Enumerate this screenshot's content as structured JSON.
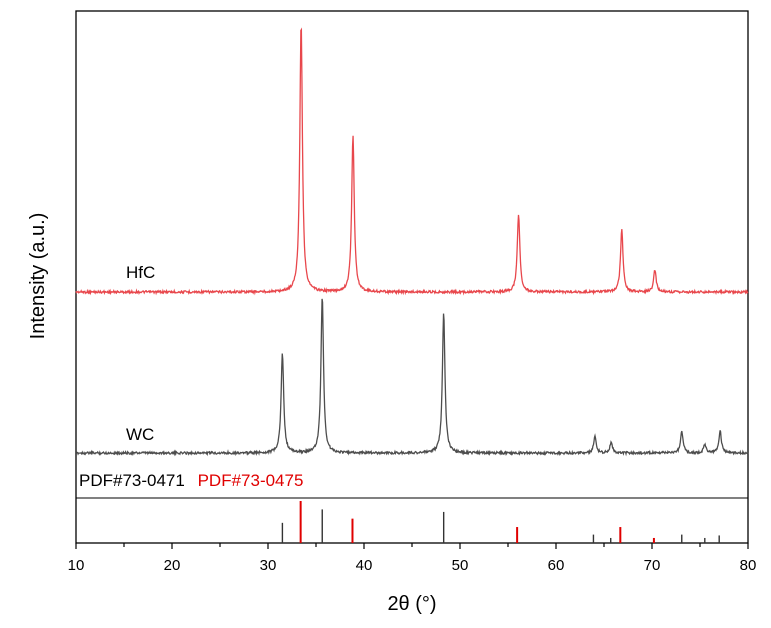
{
  "chart_data": {
    "type": "line",
    "xlabel": "2θ (°)",
    "ylabel": "Intensity (a.u.)",
    "xlim": [
      10,
      80
    ],
    "xticks": [
      "10",
      "20",
      "30",
      "40",
      "50",
      "60",
      "70",
      "80"
    ],
    "y_scale": "arbitrary units, stacked offset",
    "grid": false,
    "series": [
      {
        "name": "HfC",
        "color": "#e8474c",
        "baseline": 1.0,
        "peaks": [
          {
            "x": 33.45,
            "height": 1.0
          },
          {
            "x": 38.85,
            "height": 0.58
          },
          {
            "x": 56.1,
            "height": 0.29
          },
          {
            "x": 66.85,
            "height": 0.23
          },
          {
            "x": 70.3,
            "height": 0.08
          }
        ]
      },
      {
        "name": "WC",
        "color": "#4d4d4d",
        "baseline": 0.0,
        "peaks": [
          {
            "x": 31.5,
            "height": 0.37
          },
          {
            "x": 35.65,
            "height": 0.58
          },
          {
            "x": 48.3,
            "height": 0.52
          },
          {
            "x": 64.05,
            "height": 0.06
          },
          {
            "x": 65.75,
            "height": 0.04
          },
          {
            "x": 73.1,
            "height": 0.08
          },
          {
            "x": 75.5,
            "height": 0.03
          },
          {
            "x": 77.1,
            "height": 0.08
          }
        ]
      }
    ],
    "reference_patterns": [
      {
        "label": "PDF#73-0471",
        "color": "#333333",
        "lines": [
          {
            "x": 31.5,
            "intensity": 0.48
          },
          {
            "x": 35.65,
            "intensity": 0.8
          },
          {
            "x": 48.3,
            "intensity": 0.74
          },
          {
            "x": 63.9,
            "intensity": 0.2
          },
          {
            "x": 65.7,
            "intensity": 0.12
          },
          {
            "x": 73.1,
            "intensity": 0.2
          },
          {
            "x": 75.5,
            "intensity": 0.12
          },
          {
            "x": 77.0,
            "intensity": 0.18
          }
        ]
      },
      {
        "label": "PDF#73-0475",
        "color": "#e00000",
        "lines": [
          {
            "x": 33.4,
            "intensity": 1.0
          },
          {
            "x": 38.8,
            "intensity": 0.58
          },
          {
            "x": 55.95,
            "intensity": 0.38
          },
          {
            "x": 66.7,
            "intensity": 0.38
          },
          {
            "x": 70.2,
            "intensity": 0.12
          }
        ]
      }
    ]
  }
}
